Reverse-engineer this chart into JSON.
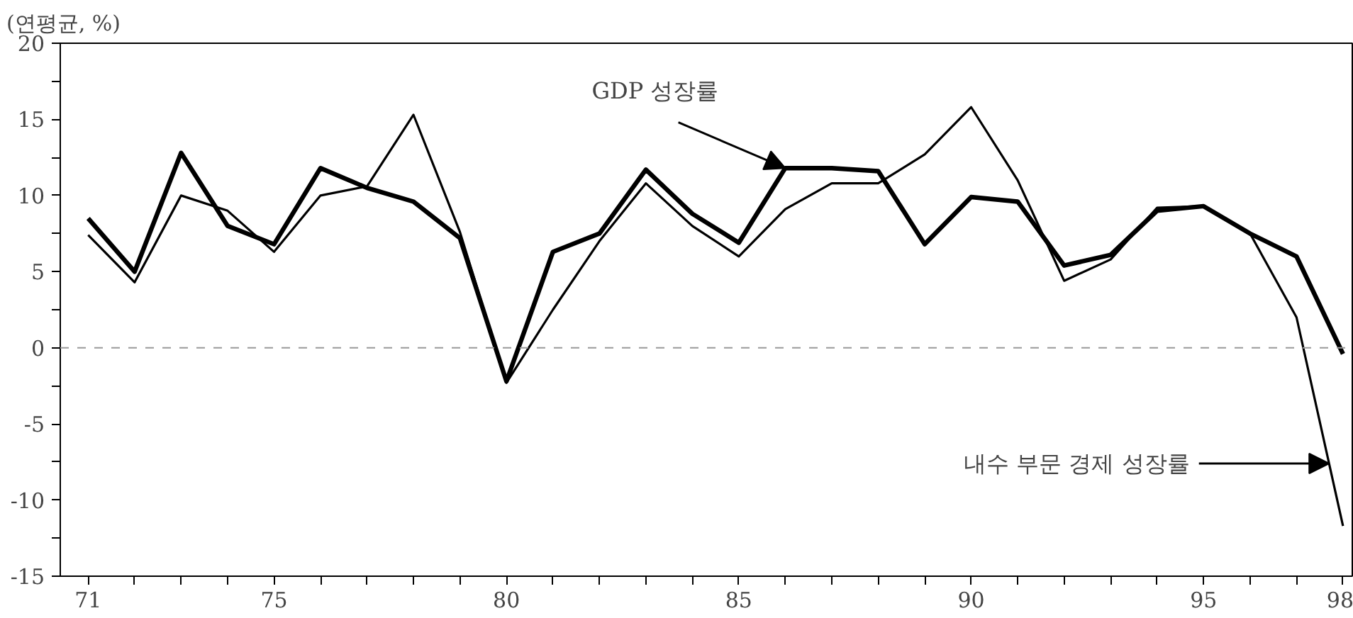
{
  "chart_data": {
    "type": "line",
    "ylabel": "(연평균, %)",
    "x": [
      71,
      72,
      73,
      74,
      75,
      76,
      77,
      78,
      79,
      80,
      81,
      82,
      83,
      84,
      85,
      86,
      87,
      88,
      89,
      90,
      91,
      92,
      93,
      94,
      95,
      96,
      97,
      98
    ],
    "series": [
      {
        "color": "#000000",
        "values": [
          8.5,
          5,
          12.8,
          8,
          6.8,
          11.8,
          10.5,
          9.6,
          7.2,
          -2.2,
          6.3,
          7.5,
          11.7,
          8.8,
          6.9,
          11.8,
          11.8,
          11.6,
          6.8,
          9.9,
          9.6,
          5.4,
          6.1,
          9.0,
          9.3,
          7.5,
          6.0,
          -0.4
        ]
      },
      {
        "color": "#000000",
        "values": [
          7.4,
          4.3,
          10,
          9,
          6.3,
          10,
          10.6,
          15.3,
          7.6,
          -2.3,
          2.5,
          7,
          10.8,
          8,
          6,
          9.1,
          10.8,
          10.8,
          12.7,
          15.8,
          11,
          4.4,
          5.8,
          9.2,
          9.3,
          7.5,
          2,
          -11.7
        ]
      }
    ],
    "xlim": [
      70.4,
      98.2
    ],
    "ylim": [
      -15,
      20
    ],
    "xticks": [
      71,
      {
        "value": 72,
        "label": null
      },
      {
        "value": 73,
        "label": null
      },
      {
        "value": 74,
        "label": null
      },
      75,
      {
        "value": 76,
        "label": null
      },
      {
        "value": 77,
        "label": null
      },
      {
        "value": 78,
        "label": null
      },
      {
        "value": 79,
        "label": null
      },
      80,
      {
        "value": 81,
        "label": null
      },
      {
        "value": 82,
        "label": null
      },
      {
        "value": 83,
        "label": null
      },
      {
        "value": 84,
        "label": null
      },
      85,
      {
        "value": 86,
        "label": null
      },
      {
        "value": 87,
        "label": null
      },
      {
        "value": 88,
        "label": null
      },
      {
        "value": 89,
        "label": null
      },
      90,
      {
        "value": 91,
        "label": null
      },
      {
        "value": 92,
        "label": null
      },
      {
        "value": 93,
        "label": null
      },
      {
        "value": 94,
        "label": null
      },
      95,
      {
        "value": 96,
        "label": null
      },
      {
        "value": 97,
        "label": null
      },
      98
    ],
    "yticks": [
      -15,
      {
        "value": -12.5,
        "label": null
      },
      -10,
      {
        "value": -7.5,
        "label": null
      },
      -5,
      {
        "value": -2.5,
        "label": null
      },
      0,
      {
        "value": 2.5,
        "label": null
      },
      5,
      {
        "value": 7.5,
        "label": null
      },
      10,
      {
        "value": 12.5,
        "label": null
      },
      15,
      {
        "value": 17.5,
        "label": null
      },
      20
    ],
    "ref_lines": [
      {
        "axis": "y",
        "value": 0,
        "color": "#999999",
        "line_style": "dashed"
      }
    ],
    "annotations": [
      {
        "text": "GDP 성장률",
        "x": 86,
        "y": 11.8
      },
      {
        "text": "내수 부문 경제 성장률",
        "x": 97.7,
        "y": -7.6
      }
    ],
    "grid": false,
    "marker": "none",
    "line_style": "solid"
  }
}
